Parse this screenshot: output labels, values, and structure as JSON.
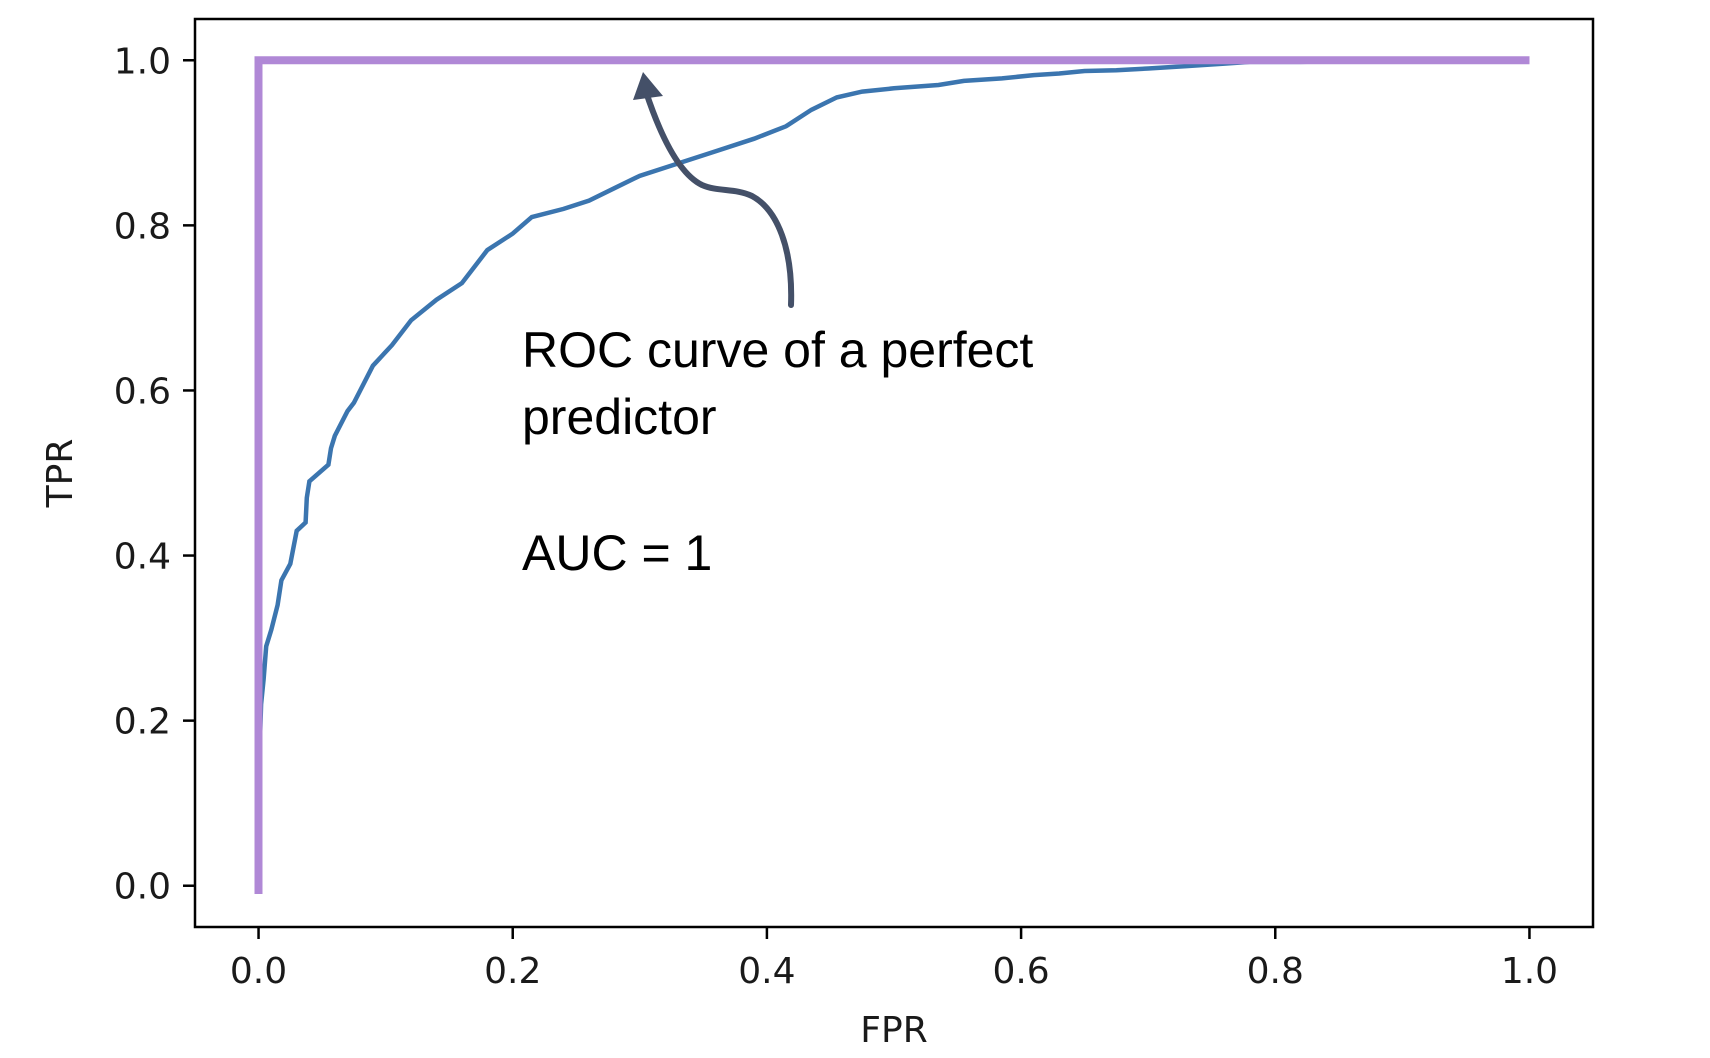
{
  "chart_data": {
    "type": "line",
    "xlabel": "FPR",
    "ylabel": "TPR",
    "xlim": [
      -0.05,
      1.05
    ],
    "ylim": [
      -0.05,
      1.05
    ],
    "xticks": [
      "0.0",
      "0.2",
      "0.4",
      "0.6",
      "0.8",
      "1.0"
    ],
    "yticks": [
      "0.0",
      "0.2",
      "0.4",
      "0.6",
      "0.8",
      "1.0"
    ],
    "grid": false,
    "series": [
      {
        "color": "#3b75af",
        "x": [
          0.0,
          0.0,
          0.002,
          0.004,
          0.006,
          0.01,
          0.015,
          0.018,
          0.025,
          0.03,
          0.037,
          0.038,
          0.04,
          0.055,
          0.057,
          0.06,
          0.07,
          0.075,
          0.08,
          0.09,
          0.105,
          0.12,
          0.14,
          0.16,
          0.18,
          0.2,
          0.215,
          0.24,
          0.26,
          0.28,
          0.3,
          0.33,
          0.36,
          0.39,
          0.415,
          0.435,
          0.455,
          0.475,
          0.5,
          0.535,
          0.555,
          0.585,
          0.61,
          0.63,
          0.65,
          0.675,
          0.7,
          0.73,
          0.76,
          0.78,
          0.82,
          0.85,
          0.88,
          0.9,
          0.95,
          1.0
        ],
        "y": [
          0.0,
          0.12,
          0.22,
          0.25,
          0.29,
          0.31,
          0.34,
          0.37,
          0.39,
          0.43,
          0.44,
          0.47,
          0.49,
          0.51,
          0.53,
          0.545,
          0.575,
          0.585,
          0.6,
          0.63,
          0.655,
          0.685,
          0.71,
          0.73,
          0.77,
          0.79,
          0.81,
          0.82,
          0.83,
          0.845,
          0.86,
          0.875,
          0.89,
          0.905,
          0.92,
          0.94,
          0.955,
          0.962,
          0.966,
          0.97,
          0.975,
          0.978,
          0.982,
          0.984,
          0.987,
          0.988,
          0.99,
          0.993,
          0.996,
          0.998,
          0.998,
          0.999,
          1.0,
          1.0,
          1.0,
          1.0
        ]
      },
      {
        "color": "#b088d6",
        "x": [
          0.0,
          0.0,
          1.0
        ],
        "y": [
          -0.01,
          1.0,
          1.0
        ]
      }
    ],
    "annotation": {
      "lines": [
        "ROC curve of a perfect",
        "predictor"
      ],
      "secondary": "AUC = 1",
      "arrow_color": "#445068"
    }
  }
}
